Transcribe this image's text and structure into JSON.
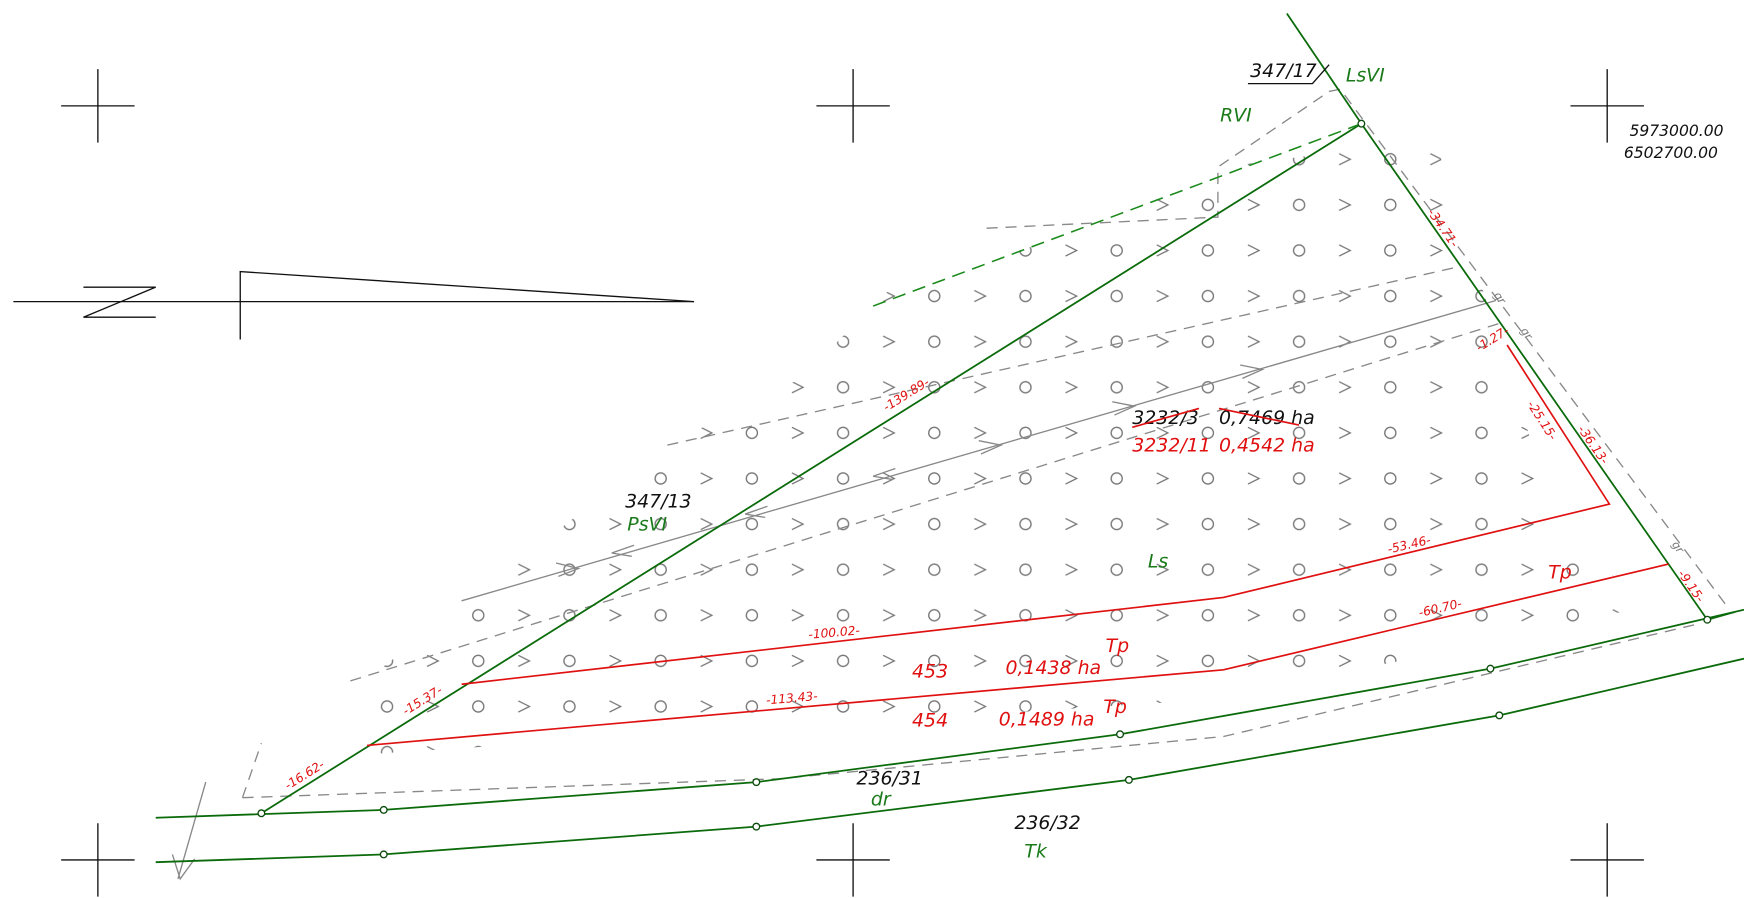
{
  "coordinates": [
    "5973000.00",
    "6502700.00"
  ],
  "parcels": [
    {
      "number": "347/17",
      "use": "LsVI"
    },
    {
      "use": "RVI"
    },
    {
      "number": "347/13",
      "use": "PsVI"
    },
    {
      "number": "3232/3",
      "area": "0,7469 ha"
    },
    {
      "number": "3232/11",
      "area": "0,4542 ha",
      "use": "Ls"
    },
    {
      "number": "453",
      "area": "0,1438 ha",
      "use": "Tp"
    },
    {
      "number": "454",
      "area": "0,1489 ha",
      "use": "Tp"
    },
    {
      "use": "Tp"
    },
    {
      "number": "236/31",
      "use": "dr"
    },
    {
      "number": "236/32",
      "use": "Tk"
    }
  ],
  "dimensions": [
    "-139.89-",
    "-34.71-",
    "-1.27-",
    "-25.15-",
    "-36.13-",
    "-53.46-",
    "-60.70-",
    "-9.15-",
    "-100.02-",
    "-113.43-",
    "-15.37-",
    "-16.62-"
  ],
  "boundary_marks": [
    "gr",
    "gr",
    "gr"
  ]
}
